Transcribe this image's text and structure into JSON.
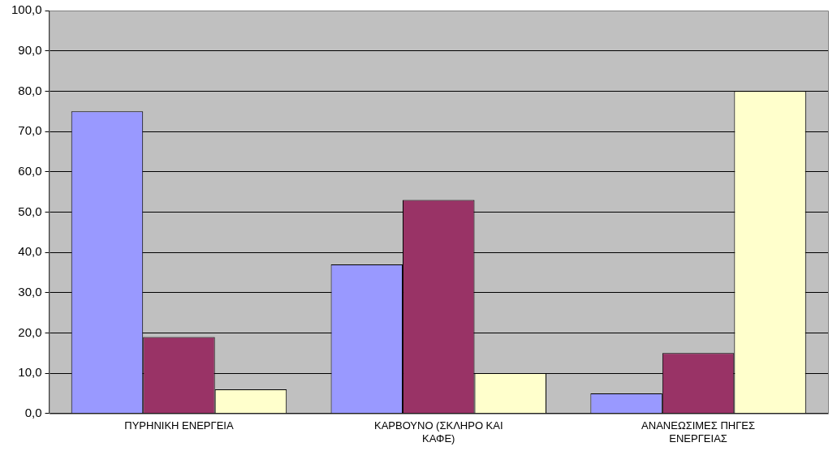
{
  "chart_data": {
    "type": "bar",
    "categories": [
      "ΠΥΡΗΝΙΚΗ ΕΝΕΡΓΕΙΑ",
      "ΚΑΡΒΟΥΝΟ (ΣΚΛΗΡΟ ΚΑΙ ΚΑΦΕ)",
      "ΑΝΑΝΕΩΣΙΜΕΣ ΠΗΓΕΣ ΕΝΕΡΓΕΙΑΣ"
    ],
    "series": [
      {
        "color": "#9999ff",
        "values": [
          75,
          37,
          5
        ]
      },
      {
        "color": "#993366",
        "values": [
          19,
          53,
          15
        ]
      },
      {
        "color": "#ffffcc",
        "values": [
          6,
          10,
          80
        ]
      }
    ],
    "ylim": [
      0,
      100
    ],
    "yticks": [
      {
        "value": 0,
        "label": "0,0"
      },
      {
        "value": 10,
        "label": "10,0"
      },
      {
        "value": 20,
        "label": "20,0"
      },
      {
        "value": 30,
        "label": "30,0"
      },
      {
        "value": 40,
        "label": "40,0"
      },
      {
        "value": 50,
        "label": "50,0"
      },
      {
        "value": 60,
        "label": "60,0"
      },
      {
        "value": 70,
        "label": "70,0"
      },
      {
        "value": 80,
        "label": "80,0"
      },
      {
        "value": 90,
        "label": "90,0"
      },
      {
        "value": 100,
        "label": "100,0"
      }
    ],
    "grid": "y",
    "legend": false
  }
}
